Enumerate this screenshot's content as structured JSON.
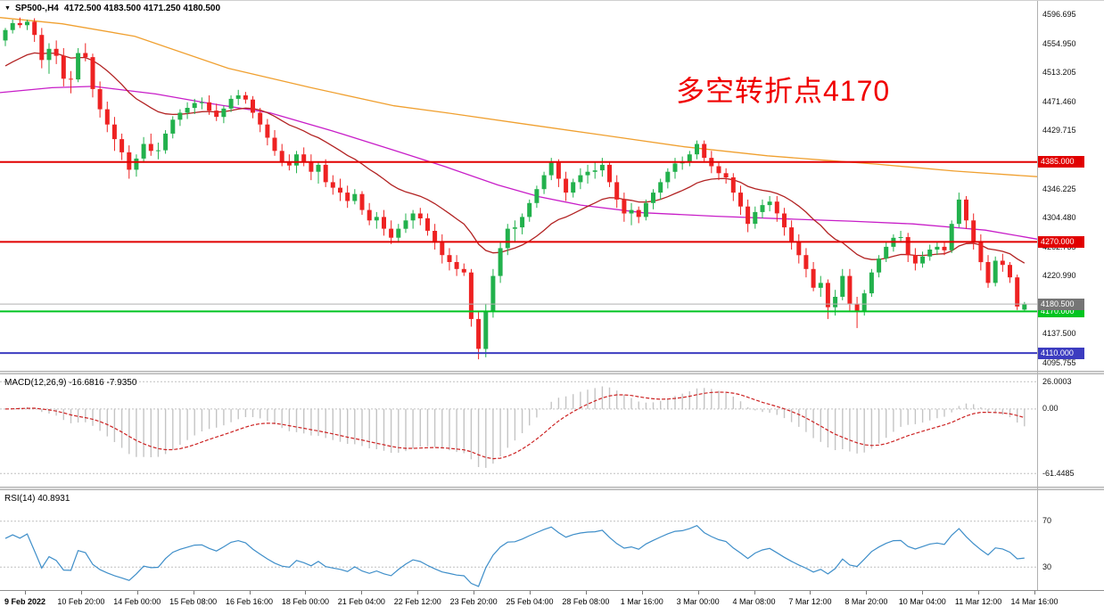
{
  "colors": {
    "background": "#ffffff",
    "bull": "#22b14c",
    "bear": "#ee2222",
    "ma_slow": "#f0a030",
    "ma_medium": "#c81ec8",
    "ma_fast": "#b22222",
    "macd_histogram": "#c4c4c4",
    "macd_signal": "#cc2222",
    "rsi_line": "#3e8ec9",
    "level_red": "#e10000",
    "level_green": "#00c420",
    "level_blue": "#3c3cc0",
    "bid_line": "#b0b0b0",
    "bid_label_bg": "#757575",
    "panel_dashed": "#c0c0c0",
    "annotation_red": "#f00000"
  },
  "header": {
    "dropdown_icon": "▼",
    "symbol_period": "SP500-,H4",
    "ohlc_text": "4172.500 4183.500 4171.250 4180.500"
  },
  "annotation": {
    "text": "多空转折点4170"
  },
  "chart_data": {
    "type": "candlestick",
    "symbol": "SP500-",
    "period": "H4",
    "ohlc_current": {
      "open": 4172.5,
      "high": 4183.5,
      "low": 4171.25,
      "close": 4180.5
    },
    "y_axis": {
      "max": 4617.0,
      "min": 4084.5,
      "ticks": [
        4596.695,
        4554.95,
        4513.205,
        4471.46,
        4429.715,
        4346.225,
        4304.48,
        4262.735,
        4220.99,
        4137.5,
        4095.755
      ],
      "tick_labels": [
        "4596.695",
        "4554.950",
        "4513.205",
        "4471.460",
        "4429.715",
        "4346.225",
        "4304.480",
        "4262.735",
        "4220.990",
        "4137.500",
        "4095.755"
      ]
    },
    "x_labels": [
      "9 Feb 2022",
      "10 Feb 20:00",
      "14 Feb 00:00",
      "15 Feb 08:00",
      "16 Feb 16:00",
      "18 Feb 00:00",
      "21 Feb 04:00",
      "22 Feb 12:00",
      "23 Feb 20:00",
      "25 Feb 04:00",
      "28 Feb 08:00",
      "1 Mar 16:00",
      "3 Mar 00:00",
      "4 Mar 08:00",
      "7 Mar 12:00",
      "8 Mar 20:00",
      "10 Mar 04:00",
      "11 Mar 12:00",
      "14 Mar 16:00"
    ],
    "levels": [
      {
        "value": 4385.0,
        "label": "4385.000",
        "color_key": "level_red"
      },
      {
        "value": 4270.0,
        "label": "4270.000",
        "color_key": "level_red"
      },
      {
        "value": 4170.0,
        "label": "4170.000",
        "color_key": "level_green"
      },
      {
        "value": 4110.0,
        "label": "4110.000",
        "color_key": "level_blue"
      }
    ],
    "bid": {
      "value": 4180.5,
      "label": "4180.500"
    },
    "moving_averages": [
      {
        "name": "ma-slow",
        "style": "points",
        "color_key": "ma_slow",
        "points": [
          [
            0,
            4593
          ],
          [
            0.06,
            4584
          ],
          [
            0.13,
            4566
          ],
          [
            0.22,
            4520
          ],
          [
            0.3,
            4492
          ],
          [
            0.38,
            4466
          ],
          [
            0.43,
            4456
          ],
          [
            0.5,
            4441
          ],
          [
            0.58,
            4424
          ],
          [
            0.66,
            4407
          ],
          [
            0.74,
            4394
          ],
          [
            0.8,
            4387
          ],
          [
            0.845,
            4382
          ],
          [
            0.92,
            4372
          ],
          [
            1,
            4364
          ]
        ]
      },
      {
        "name": "ma-medium",
        "style": "points",
        "color_key": "ma_medium",
        "points": [
          [
            0,
            4485
          ],
          [
            0.05,
            4492
          ],
          [
            0.09,
            4494
          ],
          [
            0.15,
            4483
          ],
          [
            0.2,
            4470
          ],
          [
            0.26,
            4456
          ],
          [
            0.32,
            4430
          ],
          [
            0.38,
            4402
          ],
          [
            0.43,
            4378
          ],
          [
            0.48,
            4352
          ],
          [
            0.52,
            4335
          ],
          [
            0.56,
            4323
          ],
          [
            0.62,
            4312
          ],
          [
            0.69,
            4307
          ],
          [
            0.76,
            4303
          ],
          [
            0.82,
            4300
          ],
          [
            0.88,
            4296
          ],
          [
            0.95,
            4287
          ],
          [
            1,
            4274
          ]
        ]
      },
      {
        "name": "ma-fast",
        "style": "ema",
        "period": 20,
        "seed": 4518,
        "color_key": "ma_fast"
      }
    ],
    "candles": [
      [
        4560,
        4578,
        4552,
        4575
      ],
      [
        4575,
        4590,
        4570,
        4585
      ],
      [
        4585,
        4593,
        4578,
        4582
      ],
      [
        4582,
        4590,
        4575,
        4587
      ],
      [
        4587,
        4592,
        4558,
        4568
      ],
      [
        4568,
        4578,
        4520,
        4532
      ],
      [
        4532,
        4556,
        4512,
        4548
      ],
      [
        4548,
        4560,
        4526,
        4538
      ],
      [
        4538,
        4549,
        4494,
        4505
      ],
      [
        4505,
        4516,
        4484,
        4504
      ],
      [
        4504,
        4549,
        4500,
        4542
      ],
      [
        4542,
        4556,
        4530,
        4536
      ],
      [
        4536,
        4541,
        4478,
        4490
      ],
      [
        4490,
        4501,
        4449,
        4461
      ],
      [
        4461,
        4472,
        4428,
        4439
      ],
      [
        4439,
        4450,
        4401,
        4418
      ],
      [
        4418,
        4426,
        4388,
        4399
      ],
      [
        4399,
        4409,
        4361,
        4374
      ],
      [
        4374,
        4396,
        4364,
        4390
      ],
      [
        4390,
        4421,
        4384,
        4411
      ],
      [
        4411,
        4426,
        4394,
        4401
      ],
      [
        4401,
        4413,
        4389,
        4402
      ],
      [
        4402,
        4431,
        4397,
        4426
      ],
      [
        4426,
        4451,
        4419,
        4446
      ],
      [
        4446,
        4461,
        4437,
        4456
      ],
      [
        4456,
        4471,
        4447,
        4463
      ],
      [
        4463,
        4476,
        4454,
        4470
      ],
      [
        4470,
        4478,
        4461,
        4471
      ],
      [
        4471,
        4481,
        4453,
        4459
      ],
      [
        4459,
        4469,
        4444,
        4450
      ],
      [
        4450,
        4466,
        4441,
        4462
      ],
      [
        4462,
        4481,
        4457,
        4476
      ],
      [
        4476,
        4489,
        4467,
        4481
      ],
      [
        4481,
        4486,
        4469,
        4475
      ],
      [
        4475,
        4480,
        4448,
        4456
      ],
      [
        4456,
        4463,
        4428,
        4439
      ],
      [
        4439,
        4447,
        4409,
        4420
      ],
      [
        4420,
        4431,
        4394,
        4401
      ],
      [
        4401,
        4411,
        4379,
        4386
      ],
      [
        4386,
        4396,
        4373,
        4380
      ],
      [
        4380,
        4401,
        4369,
        4396
      ],
      [
        4396,
        4406,
        4379,
        4386
      ],
      [
        4386,
        4396,
        4359,
        4371
      ],
      [
        4371,
        4386,
        4354,
        4381
      ],
      [
        4381,
        4389,
        4349,
        4356
      ],
      [
        4356,
        4366,
        4338,
        4348
      ],
      [
        4348,
        4361,
        4329,
        4341
      ],
      [
        4341,
        4351,
        4319,
        4329
      ],
      [
        4329,
        4346,
        4324,
        4339
      ],
      [
        4339,
        4343,
        4309,
        4316
      ],
      [
        4316,
        4326,
        4294,
        4301
      ],
      [
        4301,
        4313,
        4289,
        4306
      ],
      [
        4306,
        4316,
        4279,
        4289
      ],
      [
        4289,
        4301,
        4267,
        4276
      ],
      [
        4276,
        4296,
        4269,
        4289
      ],
      [
        4289,
        4311,
        4283,
        4301
      ],
      [
        4301,
        4316,
        4289,
        4311
      ],
      [
        4311,
        4319,
        4294,
        4304
      ],
      [
        4304,
        4311,
        4279,
        4286
      ],
      [
        4286,
        4296,
        4259,
        4269
      ],
      [
        4269,
        4281,
        4239,
        4251
      ],
      [
        4251,
        4261,
        4229,
        4241
      ],
      [
        4241,
        4251,
        4221,
        4231
      ],
      [
        4231,
        4239,
        4221,
        4226
      ],
      [
        4226,
        4231,
        4148,
        4159
      ],
      [
        4159,
        4171,
        4101,
        4116
      ],
      [
        4116,
        4181,
        4104,
        4171
      ],
      [
        4171,
        4231,
        4161,
        4221
      ],
      [
        4221,
        4271,
        4211,
        4261
      ],
      [
        4261,
        4296,
        4251,
        4289
      ],
      [
        4289,
        4301,
        4269,
        4291
      ],
      [
        4291,
        4311,
        4281,
        4306
      ],
      [
        4306,
        4331,
        4299,
        4326
      ],
      [
        4326,
        4351,
        4319,
        4346
      ],
      [
        4346,
        4371,
        4339,
        4366
      ],
      [
        4366,
        4391,
        4359,
        4384
      ],
      [
        4384,
        4389,
        4349,
        4361
      ],
      [
        4361,
        4371,
        4329,
        4341
      ],
      [
        4341,
        4361,
        4334,
        4356
      ],
      [
        4356,
        4376,
        4346,
        4366
      ],
      [
        4366,
        4381,
        4354,
        4371
      ],
      [
        4371,
        4386,
        4361,
        4373
      ],
      [
        4373,
        4391,
        4364,
        4381
      ],
      [
        4381,
        4386,
        4349,
        4356
      ],
      [
        4356,
        4366,
        4319,
        4331
      ],
      [
        4331,
        4341,
        4299,
        4311
      ],
      [
        4311,
        4326,
        4294,
        4316
      ],
      [
        4316,
        4321,
        4297,
        4306
      ],
      [
        4306,
        4331,
        4301,
        4326
      ],
      [
        4326,
        4346,
        4317,
        4341
      ],
      [
        4341,
        4361,
        4331,
        4356
      ],
      [
        4356,
        4376,
        4347,
        4371
      ],
      [
        4371,
        4391,
        4361,
        4383
      ],
      [
        4383,
        4393,
        4374,
        4386
      ],
      [
        4386,
        4401,
        4379,
        4396
      ],
      [
        4396,
        4416,
        4389,
        4411
      ],
      [
        4411,
        4416,
        4384,
        4391
      ],
      [
        4391,
        4401,
        4369,
        4379
      ],
      [
        4379,
        4386,
        4359,
        4369
      ],
      [
        4369,
        4376,
        4354,
        4363
      ],
      [
        4363,
        4369,
        4329,
        4341
      ],
      [
        4341,
        4351,
        4309,
        4321
      ],
      [
        4321,
        4331,
        4284,
        4296
      ],
      [
        4296,
        4321,
        4289,
        4313
      ],
      [
        4313,
        4331,
        4304,
        4323
      ],
      [
        4323,
        4336,
        4314,
        4328
      ],
      [
        4328,
        4336,
        4299,
        4311
      ],
      [
        4311,
        4319,
        4279,
        4291
      ],
      [
        4291,
        4301,
        4259,
        4271
      ],
      [
        4271,
        4281,
        4239,
        4251
      ],
      [
        4251,
        4261,
        4219,
        4231
      ],
      [
        4231,
        4241,
        4199,
        4204
      ],
      [
        4204,
        4221,
        4191,
        4211
      ],
      [
        4211,
        4216,
        4159,
        4176
      ],
      [
        4176,
        4201,
        4164,
        4191
      ],
      [
        4191,
        4231,
        4186,
        4221
      ],
      [
        4221,
        4231,
        4169,
        4181
      ],
      [
        4181,
        4191,
        4146,
        4171
      ],
      [
        4171,
        4201,
        4164,
        4196
      ],
      [
        4196,
        4231,
        4191,
        4226
      ],
      [
        4226,
        4251,
        4219,
        4246
      ],
      [
        4246,
        4271,
        4241,
        4263
      ],
      [
        4263,
        4281,
        4256,
        4276
      ],
      [
        4276,
        4286,
        4269,
        4277
      ],
      [
        4277,
        4283,
        4241,
        4251
      ],
      [
        4251,
        4261,
        4229,
        4239
      ],
      [
        4239,
        4256,
        4233,
        4249
      ],
      [
        4249,
        4266,
        4243,
        4259
      ],
      [
        4259,
        4271,
        4251,
        4263
      ],
      [
        4263,
        4269,
        4251,
        4258
      ],
      [
        4258,
        4301,
        4254,
        4296
      ],
      [
        4296,
        4341,
        4291,
        4331
      ],
      [
        4331,
        4336,
        4289,
        4301
      ],
      [
        4301,
        4311,
        4259,
        4271
      ],
      [
        4271,
        4281,
        4229,
        4241
      ],
      [
        4241,
        4251,
        4204,
        4211
      ],
      [
        4211,
        4249,
        4206,
        4243
      ],
      [
        4243,
        4253,
        4227,
        4237
      ],
      [
        4237,
        4241,
        4211,
        4219
      ],
      [
        4219,
        4223,
        4172,
        4177
      ],
      [
        4172.5,
        4183.5,
        4171.25,
        4180.5
      ]
    ],
    "macd": {
      "label": "MACD(12,26,9) -16.6816 -7.9350",
      "fast": 12,
      "slow": 26,
      "signal": 9,
      "current": {
        "macd": -16.6816,
        "signal": -7.935
      },
      "scale": [
        {
          "text": "26.0003",
          "value": 26.0003
        },
        {
          "text": "0.00",
          "value": 0
        },
        {
          "text": "-61.4485",
          "value": -61.4485
        }
      ],
      "range": [
        -74,
        33
      ]
    },
    "rsi": {
      "label": "RSI(14) 40.8931",
      "period": 14,
      "current": 40.8931,
      "levels": [
        {
          "text": "70",
          "value": 70
        },
        {
          "text": "30",
          "value": 30
        }
      ],
      "range": [
        10,
        97
      ]
    }
  }
}
